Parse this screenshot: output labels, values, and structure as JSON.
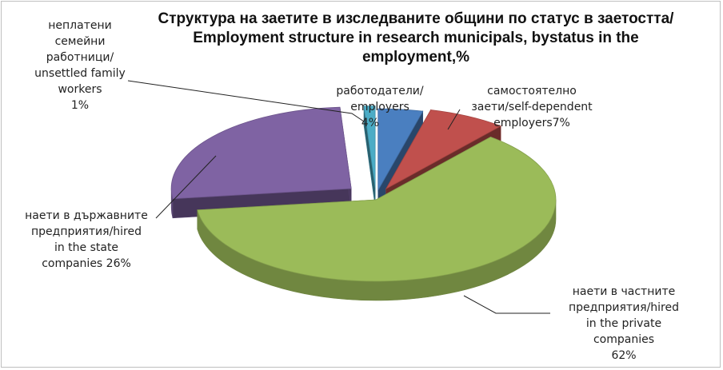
{
  "chart_data": {
    "type": "pie",
    "title_bg": "Структура на заетите в изследваните общини по статус в заетостта/",
    "title_en_1": "Employment  structure in research municipals, bystatus in the",
    "title_en_2": "employment,%",
    "slices": [
      {
        "id": "employers",
        "label_lines": [
          "работодатели/",
          "employers"
        ],
        "value_text": "4%",
        "value": 4,
        "color": "#4a7fc0"
      },
      {
        "id": "self",
        "label_lines": [
          "самостоятелно",
          "заети/self-dependent",
          "employers7%"
        ],
        "value": 7,
        "color": "#c0504d"
      },
      {
        "id": "private",
        "label_lines": [
          "наети в частните",
          "предприятия/hired",
          "in the private",
          "companies",
          "62%"
        ],
        "value": 62,
        "color": "#9bbb59"
      },
      {
        "id": "state",
        "label_lines": [
          "наети в държавните",
          "предприятия/hired",
          "in the state",
          "companies 26%"
        ],
        "value": 26,
        "color": "#7f63a3"
      },
      {
        "id": "unsettled",
        "label_lines": [
          "неплатени",
          "семейни",
          "работници/",
          "unsettled family",
          "workers",
          "1%"
        ],
        "value": 1,
        "color": "#4bacc6"
      }
    ]
  }
}
